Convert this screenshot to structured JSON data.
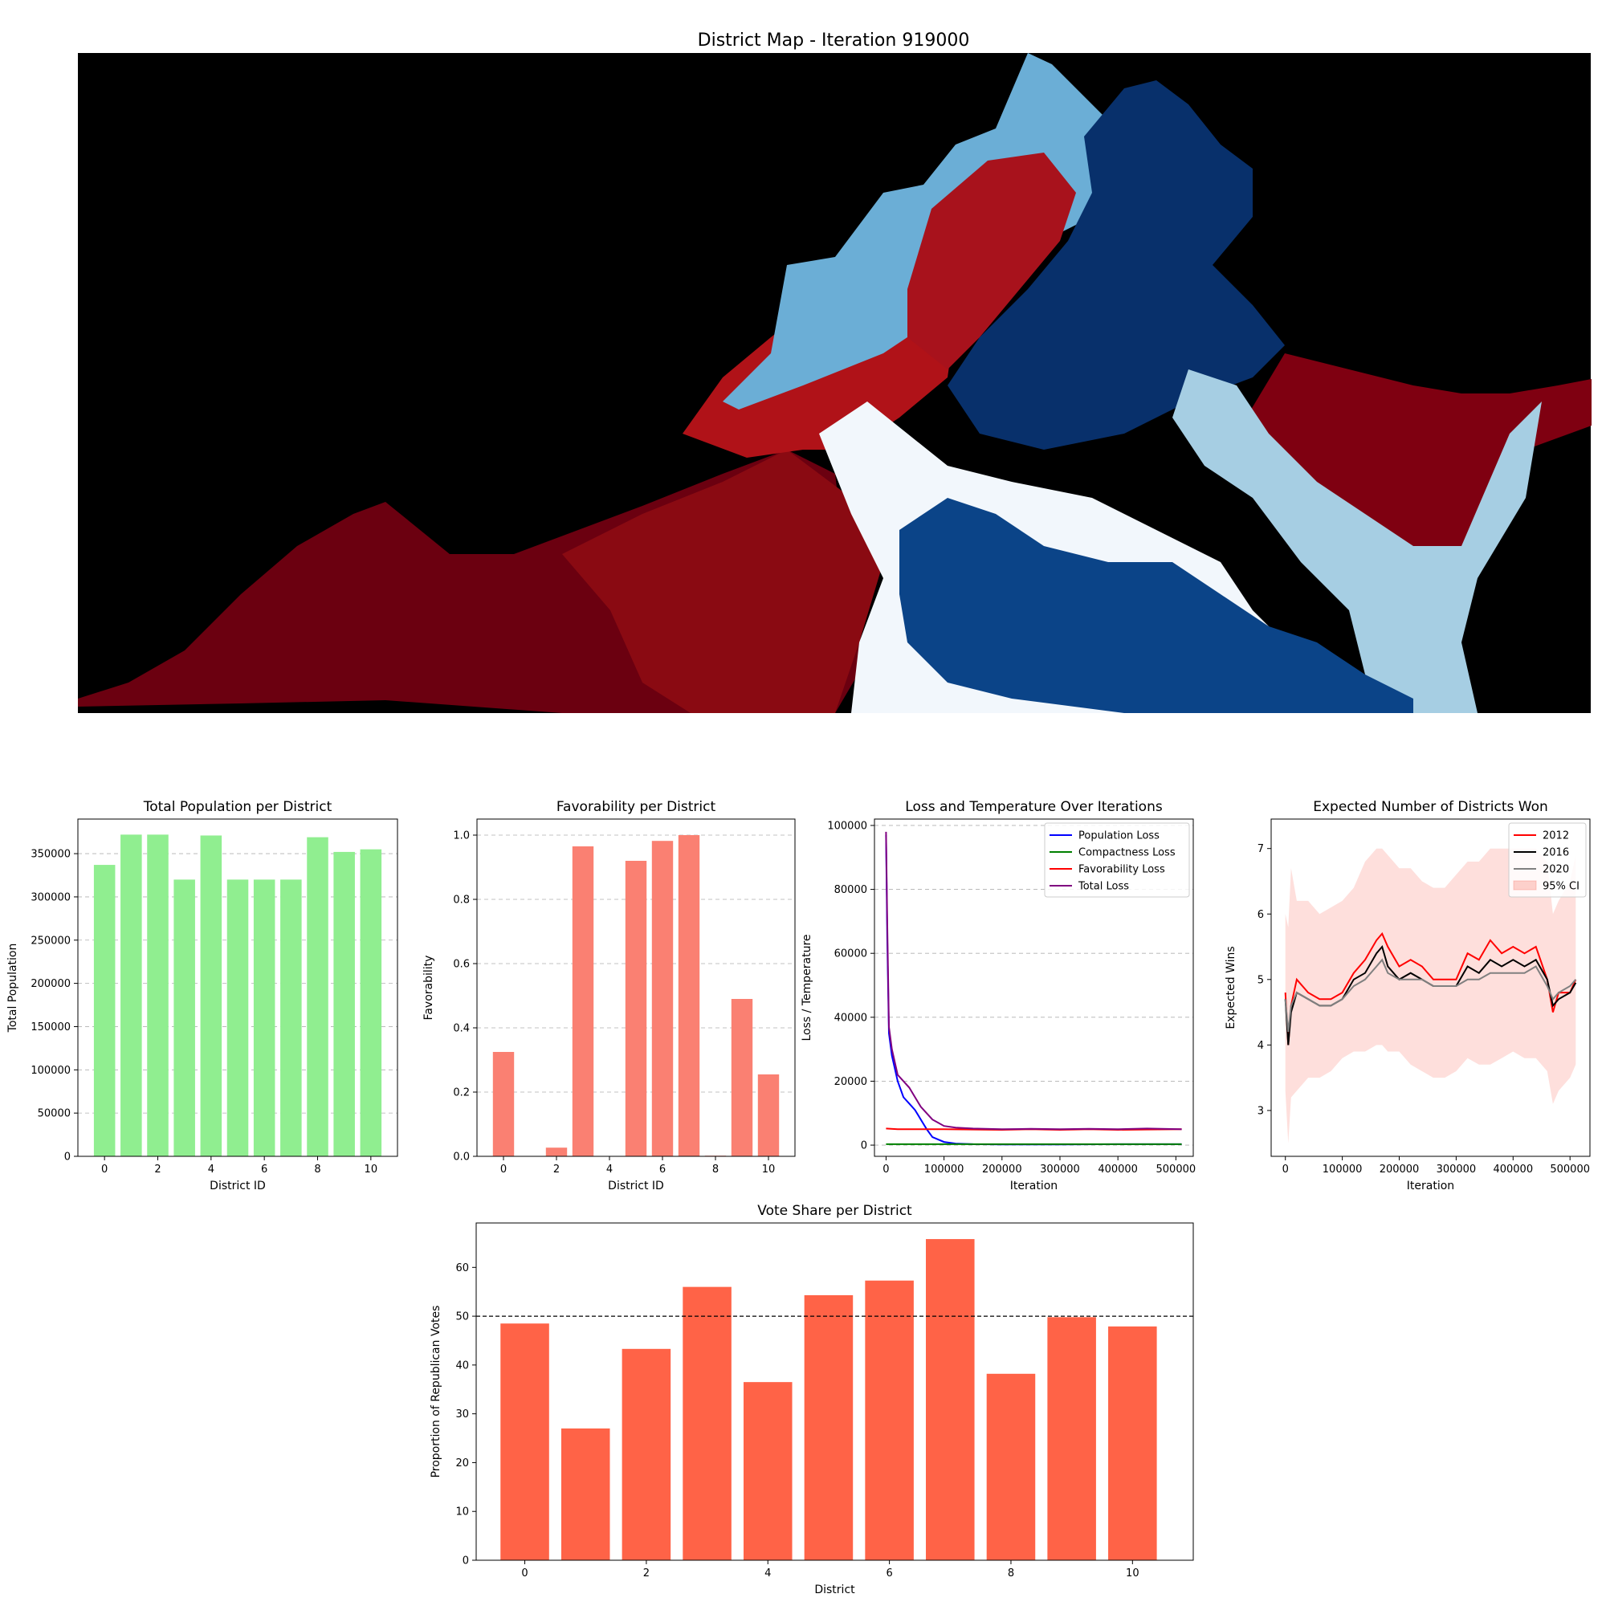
{
  "map": {
    "title": "District Map - Iteration 919000"
  },
  "chart_data": [
    {
      "id": "population",
      "type": "bar",
      "title": "Total Population per District",
      "xlabel": "District ID",
      "ylabel": "Total Population",
      "categories": [
        0,
        1,
        2,
        3,
        4,
        5,
        6,
        7,
        8,
        9,
        10
      ],
      "values": [
        337000,
        372000,
        372000,
        320000,
        371000,
        320000,
        320000,
        320000,
        369000,
        352000,
        355000
      ],
      "xlim": [
        -1,
        11
      ],
      "ylim": [
        0,
        390000
      ],
      "yticks": [
        0,
        50000,
        100000,
        150000,
        200000,
        250000,
        300000,
        350000
      ],
      "xticks": [
        0,
        2,
        4,
        6,
        8,
        10
      ],
      "grid": "y-dashed",
      "color": "#90ee90"
    },
    {
      "id": "favorability",
      "type": "bar",
      "title": "Favorability per District",
      "xlabel": "District ID",
      "ylabel": "Favorability",
      "categories": [
        0,
        1,
        2,
        3,
        4,
        5,
        6,
        7,
        8,
        9,
        10
      ],
      "values": [
        0.325,
        0.0,
        0.027,
        0.965,
        0.0,
        0.92,
        0.982,
        1.0,
        0.002,
        0.49,
        0.255
      ],
      "xlim": [
        -1,
        11
      ],
      "ylim": [
        0,
        1.05
      ],
      "yticks": [
        0.0,
        0.2,
        0.4,
        0.6,
        0.8,
        1.0
      ],
      "xticks": [
        0,
        2,
        4,
        6,
        8,
        10
      ],
      "grid": "y-dashed",
      "color": "#fa8072"
    },
    {
      "id": "loss",
      "type": "line",
      "title": "Loss and Temperature Over Iterations",
      "xlabel": "Iteration",
      "ylabel": "Loss / Temperature",
      "xlim": [
        -20000,
        530000
      ],
      "ylim": [
        -3500,
        102000
      ],
      "xticks": [
        0,
        100000,
        200000,
        300000,
        400000,
        500000
      ],
      "yticks": [
        0,
        20000,
        40000,
        60000,
        80000,
        100000
      ],
      "grid": "y-dashed",
      "legend": "top-right",
      "series": [
        {
          "name": "Population Loss",
          "color": "#0000ff",
          "x": [
            0,
            2000,
            5000,
            10000,
            20000,
            30000,
            40000,
            50000,
            60000,
            70000,
            80000,
            100000,
            120000,
            150000,
            200000,
            300000,
            400000,
            510000
          ],
          "y": [
            97000,
            65000,
            35000,
            28000,
            20000,
            15000,
            13000,
            11000,
            8000,
            5000,
            2500,
            1000,
            500,
            300,
            200,
            200,
            300,
            300
          ]
        },
        {
          "name": "Compactness Loss",
          "color": "#008000",
          "x": [
            0,
            100000,
            200000,
            300000,
            400000,
            510000
          ],
          "y": [
            300,
            300,
            300,
            300,
            300,
            300
          ]
        },
        {
          "name": "Favorability Loss",
          "color": "#ff0000",
          "x": [
            0,
            20000,
            50000,
            100000,
            150000,
            200000,
            250000,
            300000,
            350000,
            400000,
            450000,
            510000
          ],
          "y": [
            5200,
            5000,
            5000,
            5000,
            4900,
            4800,
            5000,
            4800,
            5000,
            4800,
            4900,
            5000
          ]
        },
        {
          "name": "Total Loss",
          "color": "#800080",
          "x": [
            0,
            2000,
            5000,
            10000,
            20000,
            30000,
            40000,
            50000,
            60000,
            70000,
            80000,
            100000,
            120000,
            150000,
            200000,
            250000,
            300000,
            350000,
            400000,
            450000,
            510000
          ],
          "y": [
            98000,
            70000,
            37000,
            30000,
            22000,
            20000,
            18000,
            15000,
            12000,
            10000,
            8000,
            6000,
            5500,
            5200,
            5000,
            5100,
            5000,
            5100,
            5000,
            5200,
            5000
          ]
        }
      ]
    },
    {
      "id": "expected_wins",
      "type": "line",
      "title": "Expected Number of Districts Won",
      "xlabel": "Iteration",
      "ylabel": "Expected Wins",
      "xlim": [
        -25000,
        535000
      ],
      "ylim": [
        2.3,
        7.45
      ],
      "xticks": [
        0,
        100000,
        200000,
        300000,
        400000,
        500000
      ],
      "yticks": [
        3,
        4,
        5,
        6,
        7
      ],
      "legend": "top-right",
      "series": [
        {
          "name": "2012",
          "color": "#ff0000",
          "x": [
            0,
            5000,
            10000,
            20000,
            40000,
            60000,
            80000,
            100000,
            120000,
            140000,
            160000,
            170000,
            180000,
            200000,
            220000,
            240000,
            260000,
            280000,
            300000,
            320000,
            340000,
            360000,
            380000,
            400000,
            420000,
            440000,
            460000,
            470000,
            480000,
            500000,
            510000
          ],
          "y": [
            4.8,
            4.0,
            4.6,
            5.0,
            4.8,
            4.7,
            4.7,
            4.8,
            5.1,
            5.3,
            5.6,
            5.7,
            5.5,
            5.2,
            5.3,
            5.2,
            5.0,
            5.0,
            5.0,
            5.4,
            5.3,
            5.6,
            5.4,
            5.5,
            5.4,
            5.5,
            5.0,
            4.5,
            4.8,
            4.8,
            5.0
          ]
        },
        {
          "name": "2016",
          "color": "#000000",
          "x": [
            0,
            5000,
            10000,
            20000,
            40000,
            60000,
            80000,
            100000,
            120000,
            140000,
            160000,
            170000,
            180000,
            200000,
            220000,
            240000,
            260000,
            280000,
            300000,
            320000,
            340000,
            360000,
            380000,
            400000,
            420000,
            440000,
            460000,
            470000,
            480000,
            500000,
            510000
          ],
          "y": [
            4.7,
            4.0,
            4.5,
            4.8,
            4.7,
            4.6,
            4.6,
            4.7,
            5.0,
            5.1,
            5.4,
            5.5,
            5.2,
            5.0,
            5.1,
            5.0,
            4.9,
            4.9,
            4.9,
            5.2,
            5.1,
            5.3,
            5.2,
            5.3,
            5.2,
            5.3,
            5.0,
            4.6,
            4.7,
            4.8,
            4.95
          ]
        },
        {
          "name": "2020",
          "color": "#808080",
          "x": [
            0,
            5000,
            10000,
            20000,
            40000,
            60000,
            80000,
            100000,
            120000,
            140000,
            160000,
            170000,
            180000,
            200000,
            220000,
            240000,
            260000,
            280000,
            300000,
            320000,
            340000,
            360000,
            380000,
            400000,
            420000,
            440000,
            460000,
            470000,
            480000,
            500000,
            510000
          ],
          "y": [
            4.7,
            4.2,
            4.6,
            4.8,
            4.7,
            4.6,
            4.6,
            4.7,
            4.9,
            5.0,
            5.2,
            5.3,
            5.1,
            5.0,
            5.0,
            5.0,
            4.9,
            4.9,
            4.9,
            5.0,
            5.0,
            5.1,
            5.1,
            5.1,
            5.1,
            5.2,
            4.9,
            4.7,
            4.8,
            4.9,
            5.0
          ]
        },
        {
          "name": "95% CI",
          "type": "band",
          "color": "#fa8072",
          "opacity": 0.25,
          "x": [
            0,
            5000,
            10000,
            20000,
            40000,
            60000,
            80000,
            100000,
            120000,
            140000,
            160000,
            170000,
            180000,
            200000,
            220000,
            240000,
            260000,
            280000,
            300000,
            320000,
            340000,
            360000,
            380000,
            400000,
            420000,
            440000,
            460000,
            470000,
            480000,
            500000,
            510000
          ],
          "lower": [
            3.3,
            2.5,
            3.2,
            3.3,
            3.5,
            3.5,
            3.6,
            3.8,
            3.9,
            3.9,
            4.0,
            4.0,
            3.9,
            3.9,
            3.7,
            3.6,
            3.5,
            3.5,
            3.6,
            3.8,
            3.7,
            3.7,
            3.8,
            3.9,
            3.8,
            3.8,
            3.6,
            3.1,
            3.3,
            3.5,
            3.7
          ],
          "upper": [
            6.0,
            5.8,
            6.7,
            6.2,
            6.2,
            6.0,
            6.1,
            6.2,
            6.4,
            6.8,
            7.0,
            7.0,
            6.9,
            6.7,
            6.7,
            6.5,
            6.4,
            6.4,
            6.6,
            6.8,
            6.8,
            7.0,
            7.0,
            7.0,
            7.0,
            7.0,
            6.8,
            6.0,
            6.2,
            6.5,
            6.9
          ]
        }
      ]
    },
    {
      "id": "vote_share",
      "type": "bar",
      "title": "Vote Share per District",
      "xlabel": "District",
      "ylabel": "Proportion of Republican Votes",
      "categories": [
        0,
        1,
        2,
        3,
        4,
        5,
        6,
        7,
        8,
        9,
        10
      ],
      "values": [
        48.5,
        27.0,
        43.3,
        56.0,
        36.5,
        54.3,
        57.3,
        65.8,
        38.2,
        49.8,
        47.9
      ],
      "xlim": [
        -0.8,
        11.0
      ],
      "ylim": [
        0,
        69.1
      ],
      "yticks": [
        0,
        10,
        20,
        30,
        40,
        50,
        60
      ],
      "xticks": [
        0,
        2,
        4,
        6,
        8,
        10
      ],
      "reference_line": 50,
      "color": "#ff6347"
    }
  ]
}
